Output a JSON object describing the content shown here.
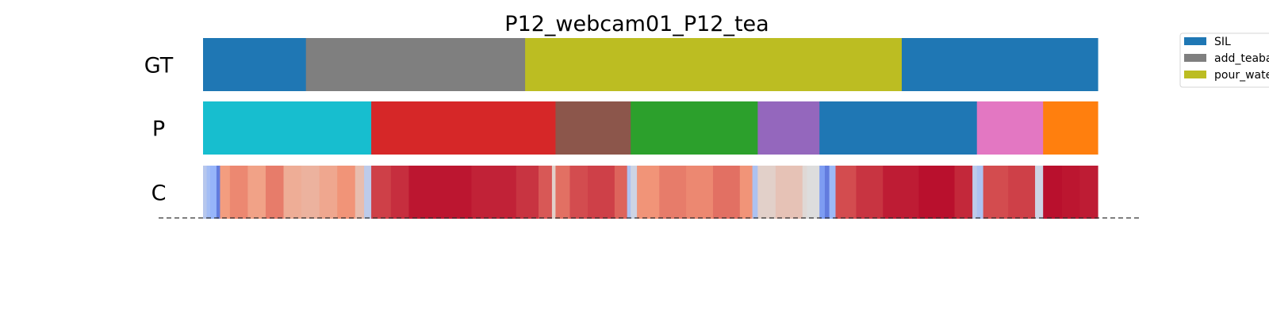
{
  "chart_data": {
    "type": "segmentation_timeline",
    "title": "P12_webcam01_P12_tea",
    "x_range": [
      0,
      1
    ],
    "rows": [
      {
        "label": "GT",
        "segments": [
          {
            "start": 0.0,
            "end": 0.115,
            "class": "SIL"
          },
          {
            "start": 0.115,
            "end": 0.36,
            "class": "add_teabag"
          },
          {
            "start": 0.36,
            "end": 0.781,
            "class": "pour_water"
          },
          {
            "start": 0.781,
            "end": 1.0,
            "class": "SIL"
          }
        ]
      },
      {
        "label": "P",
        "segments": [
          {
            "start": 0.0,
            "end": 0.188,
            "color": "#17becf"
          },
          {
            "start": 0.188,
            "end": 0.394,
            "color": "#d62728"
          },
          {
            "start": 0.394,
            "end": 0.478,
            "color": "#8c564b"
          },
          {
            "start": 0.478,
            "end": 0.62,
            "color": "#2ca02c"
          },
          {
            "start": 0.62,
            "end": 0.689,
            "color": "#9467bd"
          },
          {
            "start": 0.689,
            "end": 0.865,
            "color": "#1f77b4"
          },
          {
            "start": 0.865,
            "end": 0.939,
            "color": "#e377c2"
          },
          {
            "start": 0.939,
            "end": 1.0,
            "color": "#ff7f0e"
          }
        ]
      },
      {
        "label": "C",
        "colormap": "coolwarm",
        "confidence": [
          {
            "start": 0.0,
            "end": 0.004,
            "value": 0.38
          },
          {
            "start": 0.004,
            "end": 0.008,
            "value": 0.32
          },
          {
            "start": 0.008,
            "end": 0.015,
            "value": 0.28
          },
          {
            "start": 0.015,
            "end": 0.019,
            "value": 0.12
          },
          {
            "start": 0.019,
            "end": 0.03,
            "value": 0.74
          },
          {
            "start": 0.03,
            "end": 0.05,
            "value": 0.78
          },
          {
            "start": 0.05,
            "end": 0.07,
            "value": 0.72
          },
          {
            "start": 0.07,
            "end": 0.09,
            "value": 0.8
          },
          {
            "start": 0.09,
            "end": 0.11,
            "value": 0.68
          },
          {
            "start": 0.11,
            "end": 0.13,
            "value": 0.66
          },
          {
            "start": 0.13,
            "end": 0.15,
            "value": 0.7
          },
          {
            "start": 0.15,
            "end": 0.17,
            "value": 0.76
          },
          {
            "start": 0.17,
            "end": 0.18,
            "value": 0.62
          },
          {
            "start": 0.18,
            "end": 0.188,
            "value": 0.4
          },
          {
            "start": 0.188,
            "end": 0.21,
            "value": 0.9
          },
          {
            "start": 0.21,
            "end": 0.23,
            "value": 0.93
          },
          {
            "start": 0.23,
            "end": 0.3,
            "value": 0.97
          },
          {
            "start": 0.3,
            "end": 0.35,
            "value": 0.95
          },
          {
            "start": 0.35,
            "end": 0.375,
            "value": 0.92
          },
          {
            "start": 0.375,
            "end": 0.39,
            "value": 0.86
          },
          {
            "start": 0.39,
            "end": 0.394,
            "value": 0.55
          },
          {
            "start": 0.394,
            "end": 0.41,
            "value": 0.82
          },
          {
            "start": 0.41,
            "end": 0.43,
            "value": 0.88
          },
          {
            "start": 0.43,
            "end": 0.46,
            "value": 0.9
          },
          {
            "start": 0.46,
            "end": 0.474,
            "value": 0.84
          },
          {
            "start": 0.474,
            "end": 0.478,
            "value": 0.35
          },
          {
            "start": 0.478,
            "end": 0.485,
            "value": 0.45
          },
          {
            "start": 0.485,
            "end": 0.51,
            "value": 0.76
          },
          {
            "start": 0.51,
            "end": 0.54,
            "value": 0.8
          },
          {
            "start": 0.54,
            "end": 0.57,
            "value": 0.78
          },
          {
            "start": 0.57,
            "end": 0.6,
            "value": 0.82
          },
          {
            "start": 0.6,
            "end": 0.614,
            "value": 0.76
          },
          {
            "start": 0.614,
            "end": 0.62,
            "value": 0.35
          },
          {
            "start": 0.62,
            "end": 0.64,
            "value": 0.55
          },
          {
            "start": 0.64,
            "end": 0.67,
            "value": 0.6
          },
          {
            "start": 0.67,
            "end": 0.675,
            "value": 0.52
          },
          {
            "start": 0.675,
            "end": 0.689,
            "value": 0.5
          },
          {
            "start": 0.689,
            "end": 0.695,
            "value": 0.2
          },
          {
            "start": 0.695,
            "end": 0.7,
            "value": 0.12
          },
          {
            "start": 0.7,
            "end": 0.707,
            "value": 0.3
          },
          {
            "start": 0.707,
            "end": 0.73,
            "value": 0.88
          },
          {
            "start": 0.73,
            "end": 0.76,
            "value": 0.92
          },
          {
            "start": 0.76,
            "end": 0.8,
            "value": 0.96
          },
          {
            "start": 0.8,
            "end": 0.84,
            "value": 0.98
          },
          {
            "start": 0.84,
            "end": 0.86,
            "value": 0.94
          },
          {
            "start": 0.86,
            "end": 0.865,
            "value": 0.4
          },
          {
            "start": 0.865,
            "end": 0.872,
            "value": 0.35
          },
          {
            "start": 0.872,
            "end": 0.9,
            "value": 0.88
          },
          {
            "start": 0.9,
            "end": 0.93,
            "value": 0.9
          },
          {
            "start": 0.93,
            "end": 0.939,
            "value": 0.45
          },
          {
            "start": 0.939,
            "end": 0.96,
            "value": 0.98
          },
          {
            "start": 0.96,
            "end": 0.98,
            "value": 0.97
          },
          {
            "start": 0.98,
            "end": 1.0,
            "value": 0.96
          }
        ]
      }
    ],
    "legend": {
      "placement": "top-right",
      "entries": [
        {
          "label": "SIL",
          "color": "#1f77b4"
        },
        {
          "label": "add_teabag",
          "color": "#7f7f7f"
        },
        {
          "label": "pour_water",
          "color": "#bcbd22"
        }
      ]
    },
    "baseline": {
      "style": "dashed",
      "color": "#333333"
    }
  }
}
